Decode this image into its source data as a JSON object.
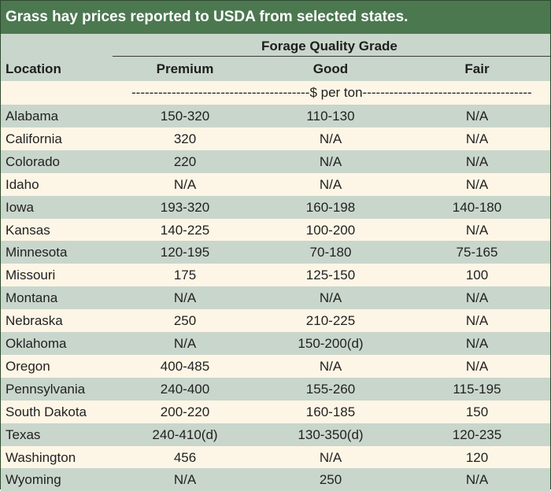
{
  "title": "Grass hay prices reported to USDA from selected states.",
  "header": {
    "group_label": "Forage Quality Grade",
    "location_label": "Location",
    "columns": [
      "Premium",
      "Good",
      "Fair"
    ],
    "unit_label": "----------------------------------------$ per ton----------------------------------------"
  },
  "rows": [
    {
      "location": "Alabama",
      "premium": "150-320",
      "good": "110-130",
      "fair": "N/A"
    },
    {
      "location": "California",
      "premium": "320",
      "good": "N/A",
      "fair": "N/A"
    },
    {
      "location": "Colorado",
      "premium": "220",
      "good": "N/A",
      "fair": "N/A"
    },
    {
      "location": "Idaho",
      "premium": "N/A",
      "good": "N/A",
      "fair": "N/A"
    },
    {
      "location": "Iowa",
      "premium": "193-320",
      "good": "160-198",
      "fair": "140-180"
    },
    {
      "location": "Kansas",
      "premium": "140-225",
      "good": "100-200",
      "fair": "N/A"
    },
    {
      "location": "Minnesota",
      "premium": "120-195",
      "good": "70-180",
      "fair": "75-165"
    },
    {
      "location": "Missouri",
      "premium": "175",
      "good": "125-150",
      "fair": "100"
    },
    {
      "location": "Montana",
      "premium": "N/A",
      "good": "N/A",
      "fair": "N/A"
    },
    {
      "location": "Nebraska",
      "premium": "250",
      "good": "210-225",
      "fair": "N/A"
    },
    {
      "location": "Oklahoma",
      "premium": "N/A",
      "good": "150-200(d)",
      "fair": "N/A"
    },
    {
      "location": "Oregon",
      "premium": "400-485",
      "good": "N/A",
      "fair": "N/A"
    },
    {
      "location": "Pennsylvania",
      "premium": "240-400",
      "good": "155-260",
      "fair": "115-195"
    },
    {
      "location": "South Dakota",
      "premium": "200-220",
      "good": "160-185",
      "fair": "150"
    },
    {
      "location": "Texas",
      "premium": "240-410(d)",
      "good": "130-350(d)",
      "fair": "120-235"
    },
    {
      "location": "Washington",
      "premium": "456",
      "good": "N/A",
      "fair": "120"
    },
    {
      "location": "Wyoming",
      "premium": "N/A",
      "good": "250",
      "fair": "N/A"
    }
  ]
}
